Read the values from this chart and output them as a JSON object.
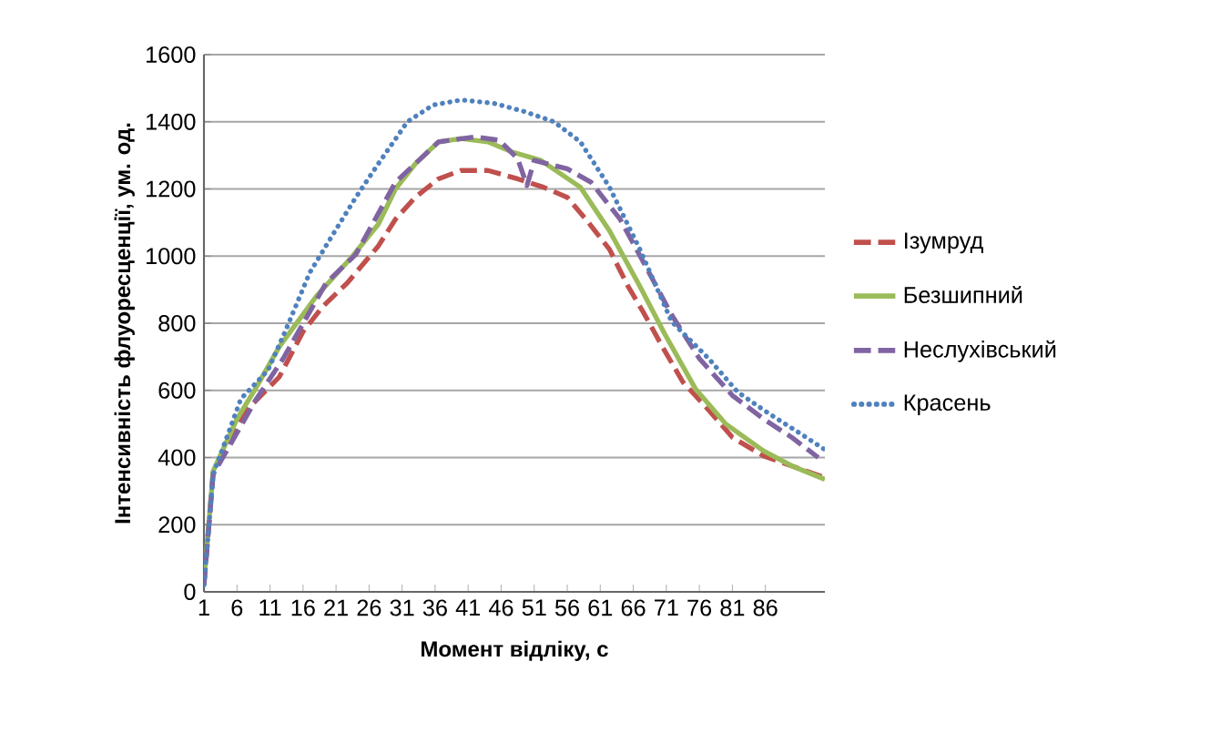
{
  "chart_data": {
    "type": "line",
    "xlabel": "Момент відліку, с",
    "ylabel": "Інтенсивність флуоресценції, ум. од.",
    "xlim": [
      1,
      95
    ],
    "xticks": [
      1,
      6,
      11,
      16,
      21,
      26,
      31,
      36,
      41,
      46,
      51,
      56,
      61,
      66,
      71,
      76,
      81,
      86
    ],
    "ylim": [
      0,
      1600
    ],
    "yticks": [
      0,
      200,
      400,
      600,
      800,
      1000,
      1200,
      1400,
      1600
    ],
    "grid": "y",
    "legend": "right",
    "marker": "none",
    "series": [
      {
        "name": "Ізумруд",
        "color": "#c0504d",
        "line_style": "dashed",
        "x": [
          1,
          2.4,
          7.4,
          12.4,
          16,
          19,
          22.7,
          27.4,
          30,
          33,
          36.5,
          39.9,
          44,
          48.5,
          52.4,
          56,
          58.8,
          62.4,
          65.2,
          67.6,
          70.4,
          73.5,
          76.8,
          81,
          85.7,
          90,
          95
        ],
        "values": [
          20,
          360,
          540,
          640,
          775,
          850,
          920,
          1030,
          1110,
          1175,
          1230,
          1255,
          1255,
          1230,
          1205,
          1175,
          1110,
          1020,
          910,
          830,
          730,
          625,
          555,
          460,
          405,
          375,
          340
        ]
      },
      {
        "name": "Безшипний",
        "color": "#9bbb59",
        "line_style": "solid",
        "x": [
          1,
          2.4,
          6,
          8.8,
          12.4,
          18,
          23.5,
          27.4,
          30,
          33,
          36.5,
          40,
          44,
          47.7,
          52,
          58,
          62.4,
          67,
          70.7,
          75.4,
          80,
          85.7,
          90,
          95
        ],
        "values": [
          30,
          360,
          515,
          605,
          730,
          880,
          1000,
          1095,
          1200,
          1275,
          1340,
          1350,
          1340,
          1310,
          1285,
          1205,
          1075,
          910,
          770,
          605,
          500,
          420,
          375,
          335
        ]
      },
      {
        "name": "Неслухівський",
        "color": "#8064a2",
        "line_style": "dashed",
        "x": [
          1,
          2.4,
          8.8,
          13,
          19.5,
          24,
          30,
          36.5,
          42,
          45.7,
          48.5,
          49.9,
          51,
          56,
          59.6,
          64,
          68,
          71.8,
          76,
          81,
          85.7,
          90,
          94
        ],
        "values": [
          20,
          350,
          570,
          695,
          920,
          1005,
          1220,
          1340,
          1355,
          1345,
          1290,
          1210,
          1285,
          1260,
          1220,
          1110,
          965,
          825,
          695,
          585,
          515,
          460,
          400
        ]
      },
      {
        "name": "Красень",
        "color": "#4f81bd",
        "line_style": "dotted",
        "x": [
          1,
          2.4,
          6.6,
          10.7,
          13.5,
          17,
          20.7,
          24,
          27.4,
          31.8,
          35.7,
          40,
          44.9,
          49.6,
          54,
          58,
          62.4,
          67,
          71.8,
          77.4,
          81.8,
          86.6,
          91,
          94.9
        ],
        "values": [
          20,
          350,
          575,
          660,
          785,
          950,
          1070,
          1175,
          1275,
          1400,
          1450,
          1465,
          1455,
          1430,
          1400,
          1340,
          1205,
          1020,
          805,
          695,
          595,
          530,
          475,
          425
        ]
      }
    ]
  }
}
